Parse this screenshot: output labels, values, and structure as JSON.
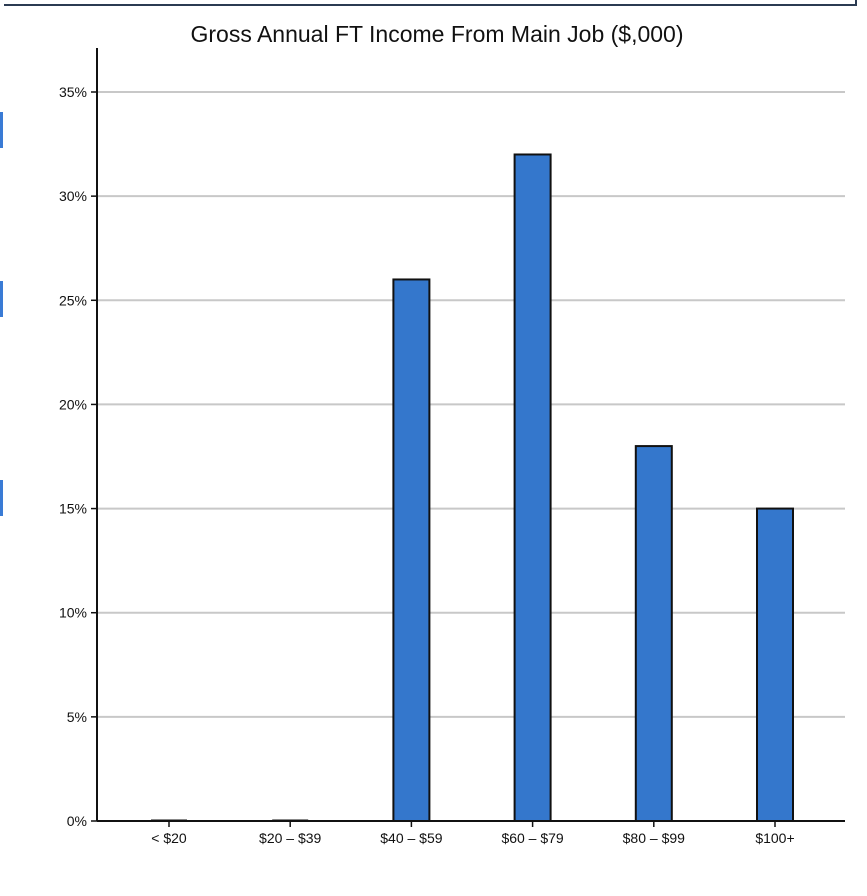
{
  "chart_data": {
    "type": "bar",
    "title": "Gross Annual FT Income From Main Job ($,000)",
    "xlabel": "",
    "ylabel": "",
    "categories": [
      "< $20",
      "$20 – $39",
      "$40 – $59",
      "$60 – $79",
      "$80 – $99",
      "$100+"
    ],
    "values": [
      0,
      0,
      26,
      32,
      18,
      15
    ],
    "ylim": [
      0,
      35
    ],
    "yticks": [
      0,
      5,
      10,
      15,
      20,
      25,
      30,
      35
    ],
    "ytick_labels": [
      "0%",
      "5%",
      "10%",
      "15%",
      "20%",
      "25%",
      "30%",
      "35%"
    ],
    "grid": "horizontal",
    "colors": {
      "bar": "#3477cc",
      "bar_edge": "#111111",
      "grid": "#c8c8c8",
      "axis": "#111111"
    }
  }
}
